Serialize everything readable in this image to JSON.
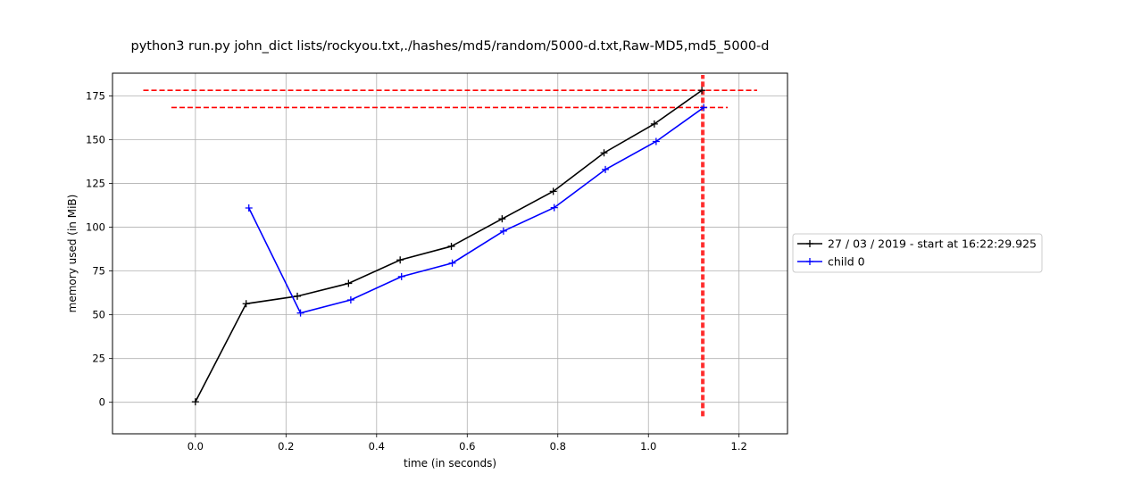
{
  "chart_data": {
    "type": "line",
    "title": "python3 run.py john_dict lists/rockyou.txt,./hashes/md5/random/5000-d.txt,Raw-MD5,md5_5000-d",
    "xlabel": "time (in seconds)",
    "ylabel": "memory used (in MiB)",
    "xlim": [
      -0.183,
      1.307
    ],
    "ylim": [
      -18,
      188
    ],
    "xticks": [
      0.0,
      0.2,
      0.4,
      0.6,
      0.8,
      1.0,
      1.2
    ],
    "xtick_labels": [
      "0.0",
      "0.2",
      "0.4",
      "0.6",
      "0.8",
      "1.0",
      "1.2"
    ],
    "yticks": [
      0,
      25,
      50,
      75,
      100,
      125,
      150,
      175
    ],
    "ytick_labels": [
      "0",
      "25",
      "50",
      "75",
      "100",
      "125",
      "150",
      "175"
    ],
    "grid": true,
    "legend_position": "right-outside",
    "series": [
      {
        "name": "27 / 03 / 2019 - start at 16:22:29.925",
        "color": "#000000",
        "marker": "plus",
        "x": [
          0.0,
          0.112,
          0.225,
          0.338,
          0.452,
          0.565,
          0.677,
          0.79,
          0.902,
          1.013,
          1.118
        ],
        "y": [
          0.3,
          56.3,
          60.6,
          67.9,
          81.3,
          89.1,
          104.8,
          120.5,
          142.5,
          159.0,
          178.2
        ]
      },
      {
        "name": "child 0",
        "color": "#0000ff",
        "marker": "plus",
        "x": [
          0.118,
          0.232,
          0.343,
          0.455,
          0.567,
          0.68,
          0.792,
          0.905,
          1.017,
          1.122
        ],
        "y": [
          111.0,
          51.0,
          58.5,
          71.8,
          79.5,
          97.8,
          111.2,
          133.0,
          149.0,
          168.4
        ]
      }
    ],
    "reference_lines": {
      "color": "#ff0000",
      "style": "dashed",
      "horizontal": [
        {
          "y": 178.2,
          "x_from": -0.115,
          "x_to": 1.24
        },
        {
          "y": 168.4,
          "x_from": -0.053,
          "x_to": 1.175
        }
      ],
      "vertical": [
        {
          "x": 1.118,
          "y_from": -8,
          "y_to": 187
        },
        {
          "x": 1.122,
          "y_from": -8,
          "y_to": 187
        }
      ]
    }
  }
}
